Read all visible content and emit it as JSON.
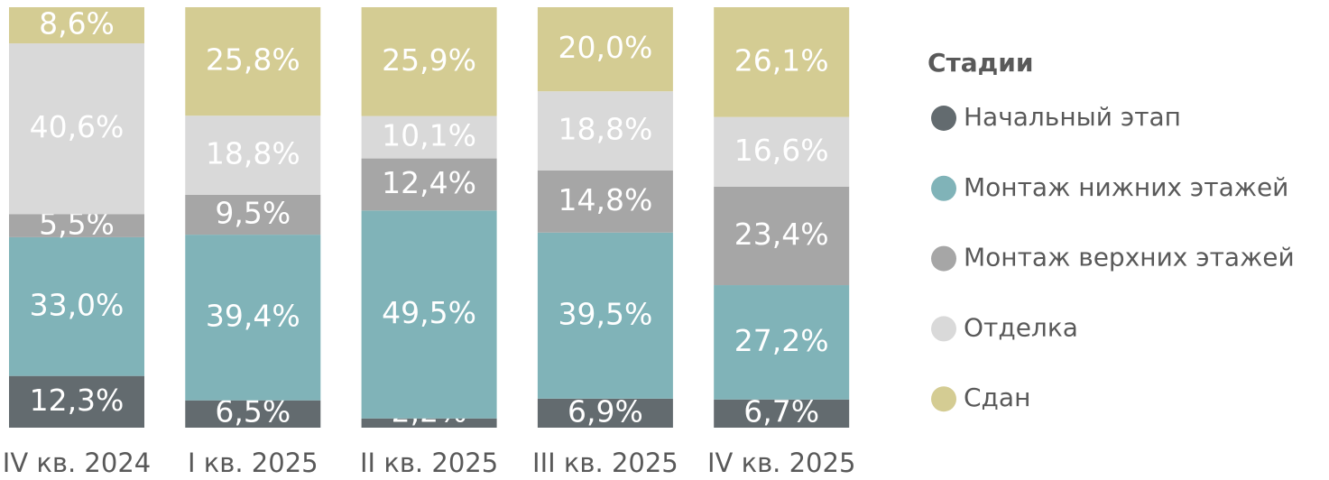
{
  "chart_data": {
    "type": "stacked_bar",
    "categories": [
      "IV кв. 2024",
      "I кв. 2025",
      "II кв. 2025",
      "III кв. 2025",
      "IV кв. 2025"
    ],
    "legend_title": "Стадии",
    "legend_position": "right",
    "series": [
      {
        "name": "Начальный этап",
        "color": "#636b6f",
        "values": [
          12.3,
          6.5,
          2.2,
          6.9,
          6.7
        ],
        "value_labels": [
          "12,3%",
          "6,5%",
          "2,2%",
          "6,9%",
          "6,7%"
        ]
      },
      {
        "name": "Монтаж нижних этажей",
        "color": "#80b3b8",
        "values": [
          33.0,
          39.4,
          49.5,
          39.5,
          27.2
        ],
        "value_labels": [
          "33,0%",
          "39,4%",
          "49,5%",
          "39,5%",
          "27,2%"
        ]
      },
      {
        "name": "Монтаж верхних этажей",
        "color": "#a6a6a6",
        "values": [
          5.5,
          9.5,
          12.4,
          14.8,
          23.4
        ],
        "value_labels": [
          "5,5%",
          "9,5%",
          "12,4%",
          "14,8%",
          "23,4%"
        ]
      },
      {
        "name": "Отделка",
        "color": "#d9d9d9",
        "values": [
          40.6,
          18.8,
          10.1,
          18.8,
          16.6
        ],
        "value_labels": [
          "40,6%",
          "18,8%",
          "10,1%",
          "18,8%",
          "16,6%"
        ]
      },
      {
        "name": "Сдан",
        "color": "#d4cc93",
        "values": [
          8.6,
          25.8,
          25.9,
          20.0,
          26.1
        ],
        "value_labels": [
          "8,6%",
          "25,8%",
          "25,9%",
          "20,0%",
          "26,1%"
        ]
      }
    ]
  }
}
